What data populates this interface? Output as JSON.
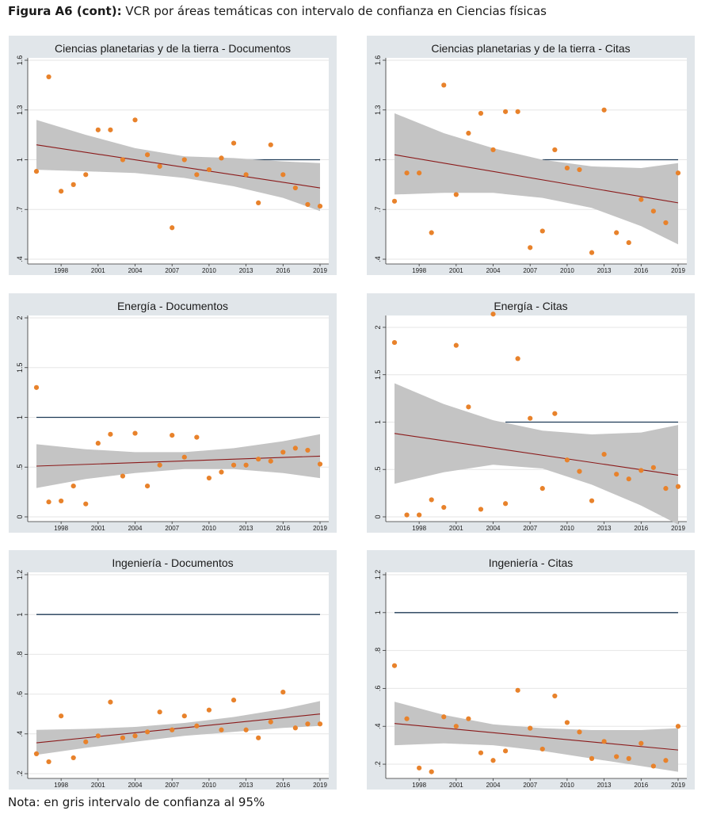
{
  "figure": {
    "label": "Figura A6 (cont):",
    "title": "VCR por áreas temáticas con intervalo de confianza en Ciencias físicas",
    "note": "Nota: en gris intervalo de confianza al 95%"
  },
  "colors": {
    "panel_bg": "#e1e6ea",
    "plot_bg": "#ffffff",
    "points": "#e8822b",
    "fit_line": "#8b1a1a",
    "ci_band": "#c4c4c4",
    "ref_line": "#1f3b57",
    "grid": "#e6e6e6"
  },
  "chart_data": [
    {
      "type": "scatter",
      "title": "Ciencias planetarias y de la tierra - Documentos",
      "xlim": [
        1996,
        2019
      ],
      "ylim": [
        0.4,
        1.6
      ],
      "yticks": [
        0.4,
        0.7,
        1,
        1.3,
        1.6
      ],
      "ytick_labels": [
        ".4",
        ".7",
        "1",
        "1.3",
        "1.6"
      ],
      "xticks": [
        1998,
        2001,
        2004,
        2007,
        2010,
        2013,
        2016,
        2019
      ],
      "xtick_labels": [
        "1998",
        "2001",
        "2004",
        "2007",
        "2010",
        "2013",
        "2016",
        "2019"
      ],
      "reference_line": {
        "x_from": 2011,
        "x_to": 2019,
        "y": 1
      },
      "fit": {
        "x": [
          1996,
          2019
        ],
        "y": [
          1.09,
          0.83
        ]
      },
      "ci": {
        "x": [
          1996,
          2000,
          2004,
          2008,
          2012,
          2016,
          2019
        ],
        "lower": [
          0.94,
          0.93,
          0.92,
          0.89,
          0.84,
          0.77,
          0.69
        ],
        "upper": [
          1.24,
          1.15,
          1.07,
          1.02,
          1.01,
          0.99,
          0.98
        ]
      },
      "points": [
        {
          "x": 1996,
          "y": 0.93
        },
        {
          "x": 1997,
          "y": 1.5
        },
        {
          "x": 1998,
          "y": 0.81
        },
        {
          "x": 1999,
          "y": 0.85
        },
        {
          "x": 2000,
          "y": 0.91
        },
        {
          "x": 2001,
          "y": 1.18
        },
        {
          "x": 2002,
          "y": 1.18
        },
        {
          "x": 2003,
          "y": 1.0
        },
        {
          "x": 2004,
          "y": 1.24
        },
        {
          "x": 2005,
          "y": 1.03
        },
        {
          "x": 2006,
          "y": 0.96
        },
        {
          "x": 2007,
          "y": 0.59
        },
        {
          "x": 2008,
          "y": 1.0
        },
        {
          "x": 2009,
          "y": 0.91
        },
        {
          "x": 2010,
          "y": 0.94
        },
        {
          "x": 2011,
          "y": 1.01
        },
        {
          "x": 2012,
          "y": 1.1
        },
        {
          "x": 2013,
          "y": 0.91
        },
        {
          "x": 2014,
          "y": 0.74
        },
        {
          "x": 2015,
          "y": 1.09
        },
        {
          "x": 2016,
          "y": 0.91
        },
        {
          "x": 2017,
          "y": 0.83
        },
        {
          "x": 2018,
          "y": 0.73
        },
        {
          "x": 2019,
          "y": 0.72
        }
      ]
    },
    {
      "type": "scatter",
      "title": "Ciencias planetarias y de la tierra - Citas",
      "xlim": [
        1996,
        2019
      ],
      "ylim": [
        0.4,
        1.6
      ],
      "yticks": [
        0.4,
        0.7,
        1,
        1.3,
        1.6
      ],
      "ytick_labels": [
        ".4",
        ".7",
        "1",
        "1.3",
        "1.6"
      ],
      "xticks": [
        1998,
        2001,
        2004,
        2007,
        2010,
        2013,
        2016,
        2019
      ],
      "xtick_labels": [
        "1998",
        "2001",
        "2004",
        "2007",
        "2010",
        "2013",
        "2016",
        "2019"
      ],
      "reference_line": {
        "x_from": 2008,
        "x_to": 2019,
        "y": 1
      },
      "fit": {
        "x": [
          1996,
          2019
        ],
        "y": [
          1.03,
          0.74
        ]
      },
      "ci": {
        "x": [
          1996,
          2000,
          2004,
          2008,
          2012,
          2016,
          2019
        ],
        "lower": [
          0.79,
          0.8,
          0.8,
          0.77,
          0.71,
          0.6,
          0.49
        ],
        "upper": [
          1.28,
          1.16,
          1.07,
          1.0,
          0.96,
          0.95,
          0.98
        ]
      },
      "points": [
        {
          "x": 1996,
          "y": 0.75
        },
        {
          "x": 1997,
          "y": 0.92
        },
        {
          "x": 1998,
          "y": 0.92
        },
        {
          "x": 1999,
          "y": 0.56
        },
        {
          "x": 2000,
          "y": 1.45
        },
        {
          "x": 2001,
          "y": 0.79
        },
        {
          "x": 2002,
          "y": 1.16
        },
        {
          "x": 2003,
          "y": 1.28
        },
        {
          "x": 2004,
          "y": 1.06
        },
        {
          "x": 2005,
          "y": 1.29
        },
        {
          "x": 2006,
          "y": 1.29
        },
        {
          "x": 2007,
          "y": 0.47
        },
        {
          "x": 2008,
          "y": 0.57
        },
        {
          "x": 2009,
          "y": 1.06
        },
        {
          "x": 2010,
          "y": 0.95
        },
        {
          "x": 2011,
          "y": 0.94
        },
        {
          "x": 2012,
          "y": 0.44
        },
        {
          "x": 2013,
          "y": 1.3
        },
        {
          "x": 2014,
          "y": 0.56
        },
        {
          "x": 2015,
          "y": 0.5
        },
        {
          "x": 2016,
          "y": 0.76
        },
        {
          "x": 2017,
          "y": 0.69
        },
        {
          "x": 2018,
          "y": 0.62
        },
        {
          "x": 2019,
          "y": 0.92
        }
      ]
    },
    {
      "type": "scatter",
      "title": "Energía - Documentos",
      "xlim": [
        1996,
        2019
      ],
      "ylim": [
        0,
        2
      ],
      "yticks": [
        0,
        0.5,
        1,
        1.5,
        2
      ],
      "ytick_labels": [
        "0",
        ".5",
        "1",
        "1.5",
        "2"
      ],
      "xticks": [
        1998,
        2001,
        2004,
        2007,
        2010,
        2013,
        2016,
        2019
      ],
      "xtick_labels": [
        "1998",
        "2001",
        "2004",
        "2007",
        "2010",
        "2013",
        "2016",
        "2019"
      ],
      "reference_line": {
        "x_from": 1996,
        "x_to": 2019,
        "y": 1
      },
      "fit": {
        "x": [
          1996,
          2019
        ],
        "y": [
          0.51,
          0.61
        ]
      },
      "ci": {
        "x": [
          1996,
          2000,
          2004,
          2008,
          2012,
          2016,
          2019
        ],
        "lower": [
          0.29,
          0.38,
          0.44,
          0.48,
          0.48,
          0.44,
          0.39
        ],
        "upper": [
          0.73,
          0.68,
          0.65,
          0.65,
          0.69,
          0.76,
          0.83
        ]
      },
      "points": [
        {
          "x": 1996,
          "y": 1.3
        },
        {
          "x": 1997,
          "y": 0.15
        },
        {
          "x": 1998,
          "y": 0.16
        },
        {
          "x": 1999,
          "y": 0.31
        },
        {
          "x": 2000,
          "y": 0.13
        },
        {
          "x": 2001,
          "y": 0.74
        },
        {
          "x": 2002,
          "y": 0.83
        },
        {
          "x": 2003,
          "y": 0.41
        },
        {
          "x": 2004,
          "y": 0.84
        },
        {
          "x": 2005,
          "y": 0.31
        },
        {
          "x": 2006,
          "y": 0.52
        },
        {
          "x": 2007,
          "y": 0.82
        },
        {
          "x": 2008,
          "y": 0.6
        },
        {
          "x": 2009,
          "y": 0.8
        },
        {
          "x": 2010,
          "y": 0.39
        },
        {
          "x": 2011,
          "y": 0.45
        },
        {
          "x": 2012,
          "y": 0.52
        },
        {
          "x": 2013,
          "y": 0.52
        },
        {
          "x": 2014,
          "y": 0.58
        },
        {
          "x": 2015,
          "y": 0.56
        },
        {
          "x": 2016,
          "y": 0.65
        },
        {
          "x": 2017,
          "y": 0.69
        },
        {
          "x": 2018,
          "y": 0.67
        },
        {
          "x": 2019,
          "y": 0.53
        }
      ]
    },
    {
      "type": "scatter",
      "title": "Energía - Citas",
      "xlim": [
        1996,
        2019
      ],
      "ylim": [
        0,
        2.1
      ],
      "yticks": [
        0,
        0.5,
        1,
        1.5,
        2
      ],
      "ytick_labels": [
        "0",
        ".5",
        "1",
        "1.5",
        "2"
      ],
      "xticks": [
        1998,
        2001,
        2004,
        2007,
        2010,
        2013,
        2016,
        2019
      ],
      "xtick_labels": [
        "1998",
        "2001",
        "2004",
        "2007",
        "2010",
        "2013",
        "2016",
        "2019"
      ],
      "reference_line": {
        "x_from": 2005,
        "x_to": 2019,
        "y": 1
      },
      "fit": {
        "x": [
          1996,
          2019
        ],
        "y": [
          0.88,
          0.44
        ]
      },
      "ci": {
        "x": [
          1996,
          2000,
          2004,
          2008,
          2012,
          2016,
          2019
        ],
        "lower": [
          0.35,
          0.47,
          0.55,
          0.51,
          0.34,
          0.12,
          -0.08
        ],
        "upper": [
          1.41,
          1.19,
          1.02,
          0.91,
          0.87,
          0.89,
          0.97
        ]
      },
      "points": [
        {
          "x": 1996,
          "y": 1.84
        },
        {
          "x": 1997,
          "y": 0.02
        },
        {
          "x": 1998,
          "y": 0.02
        },
        {
          "x": 1999,
          "y": 0.18
        },
        {
          "x": 2000,
          "y": 0.1
        },
        {
          "x": 2001,
          "y": 1.81
        },
        {
          "x": 2002,
          "y": 1.16
        },
        {
          "x": 2003,
          "y": 0.08
        },
        {
          "x": 2004,
          "y": 2.14
        },
        {
          "x": 2005,
          "y": 0.14
        },
        {
          "x": 2006,
          "y": 1.67
        },
        {
          "x": 2007,
          "y": 1.04
        },
        {
          "x": 2008,
          "y": 0.3
        },
        {
          "x": 2009,
          "y": 1.09
        },
        {
          "x": 2010,
          "y": 0.6
        },
        {
          "x": 2011,
          "y": 0.48
        },
        {
          "x": 2012,
          "y": 0.17
        },
        {
          "x": 2013,
          "y": 0.66
        },
        {
          "x": 2014,
          "y": 0.45
        },
        {
          "x": 2015,
          "y": 0.4
        },
        {
          "x": 2016,
          "y": 0.49
        },
        {
          "x": 2017,
          "y": 0.52
        },
        {
          "x": 2018,
          "y": 0.3
        },
        {
          "x": 2019,
          "y": 0.32
        }
      ]
    },
    {
      "type": "scatter",
      "title": "Ingeniería - Documentos",
      "xlim": [
        1996,
        2019
      ],
      "ylim": [
        0.2,
        1.2
      ],
      "yticks": [
        0.2,
        0.4,
        0.6,
        0.8,
        1,
        1.2
      ],
      "ytick_labels": [
        ".2",
        ".4",
        ".6",
        ".8",
        "1",
        "1.2"
      ],
      "xticks": [
        1998,
        2001,
        2004,
        2007,
        2010,
        2013,
        2016,
        2019
      ],
      "xtick_labels": [
        "1998",
        "2001",
        "2004",
        "2007",
        "2010",
        "2013",
        "2016",
        "2019"
      ],
      "reference_line": {
        "x_from": 1996,
        "x_to": 2019,
        "y": 1
      },
      "fit": {
        "x": [
          1996,
          2019
        ],
        "y": [
          0.355,
          0.5
        ]
      },
      "ci": {
        "x": [
          1996,
          2000,
          2004,
          2008,
          2012,
          2016,
          2019
        ],
        "lower": [
          0.295,
          0.33,
          0.36,
          0.39,
          0.41,
          0.43,
          0.44
        ],
        "upper": [
          0.42,
          0.425,
          0.435,
          0.455,
          0.485,
          0.525,
          0.565
        ]
      },
      "points": [
        {
          "x": 1996,
          "y": 0.3
        },
        {
          "x": 1997,
          "y": 0.26
        },
        {
          "x": 1998,
          "y": 0.49
        },
        {
          "x": 1999,
          "y": 0.28
        },
        {
          "x": 2000,
          "y": 0.36
        },
        {
          "x": 2001,
          "y": 0.39
        },
        {
          "x": 2002,
          "y": 0.56
        },
        {
          "x": 2003,
          "y": 0.38
        },
        {
          "x": 2004,
          "y": 0.39
        },
        {
          "x": 2005,
          "y": 0.41
        },
        {
          "x": 2006,
          "y": 0.51
        },
        {
          "x": 2007,
          "y": 0.42
        },
        {
          "x": 2008,
          "y": 0.49
        },
        {
          "x": 2009,
          "y": 0.44
        },
        {
          "x": 2010,
          "y": 0.52
        },
        {
          "x": 2011,
          "y": 0.42
        },
        {
          "x": 2012,
          "y": 0.57
        },
        {
          "x": 2013,
          "y": 0.42
        },
        {
          "x": 2014,
          "y": 0.38
        },
        {
          "x": 2015,
          "y": 0.46
        },
        {
          "x": 2016,
          "y": 0.61
        },
        {
          "x": 2017,
          "y": 0.43
        },
        {
          "x": 2018,
          "y": 0.45
        },
        {
          "x": 2019,
          "y": 0.45
        }
      ]
    },
    {
      "type": "scatter",
      "title": "Ingeniería - Citas",
      "xlim": [
        1996,
        2019
      ],
      "ylim": [
        0.15,
        1.2
      ],
      "yticks": [
        0.2,
        0.4,
        0.6,
        0.8,
        1,
        1.2
      ],
      "ytick_labels": [
        ".2",
        ".4",
        ".6",
        ".8",
        "1",
        "1.2"
      ],
      "xticks": [
        1998,
        2001,
        2004,
        2007,
        2010,
        2013,
        2016,
        2019
      ],
      "xtick_labels": [
        "1998",
        "2001",
        "2004",
        "2007",
        "2010",
        "2013",
        "2016",
        "2019"
      ],
      "reference_line": {
        "x_from": 1996,
        "x_to": 2019,
        "y": 1
      },
      "fit": {
        "x": [
          1996,
          2019
        ],
        "y": [
          0.415,
          0.275
        ]
      },
      "ci": {
        "x": [
          1996,
          2000,
          2004,
          2008,
          2012,
          2016,
          2019
        ],
        "lower": [
          0.3,
          0.31,
          0.3,
          0.27,
          0.23,
          0.19,
          0.16
        ],
        "upper": [
          0.53,
          0.46,
          0.41,
          0.39,
          0.38,
          0.38,
          0.39
        ]
      },
      "points": [
        {
          "x": 1996,
          "y": 0.72
        },
        {
          "x": 1997,
          "y": 0.44
        },
        {
          "x": 1998,
          "y": 0.18
        },
        {
          "x": 1999,
          "y": 0.16
        },
        {
          "x": 2000,
          "y": 0.45
        },
        {
          "x": 2001,
          "y": 0.4
        },
        {
          "x": 2002,
          "y": 0.44
        },
        {
          "x": 2003,
          "y": 0.26
        },
        {
          "x": 2004,
          "y": 0.22
        },
        {
          "x": 2005,
          "y": 0.27
        },
        {
          "x": 2006,
          "y": 0.59
        },
        {
          "x": 2007,
          "y": 0.39
        },
        {
          "x": 2008,
          "y": 0.28
        },
        {
          "x": 2009,
          "y": 0.56
        },
        {
          "x": 2010,
          "y": 0.42
        },
        {
          "x": 2011,
          "y": 0.37
        },
        {
          "x": 2012,
          "y": 0.23
        },
        {
          "x": 2013,
          "y": 0.32
        },
        {
          "x": 2014,
          "y": 0.24
        },
        {
          "x": 2015,
          "y": 0.23
        },
        {
          "x": 2016,
          "y": 0.31
        },
        {
          "x": 2017,
          "y": 0.19
        },
        {
          "x": 2018,
          "y": 0.22
        },
        {
          "x": 2019,
          "y": 0.4
        }
      ]
    }
  ]
}
